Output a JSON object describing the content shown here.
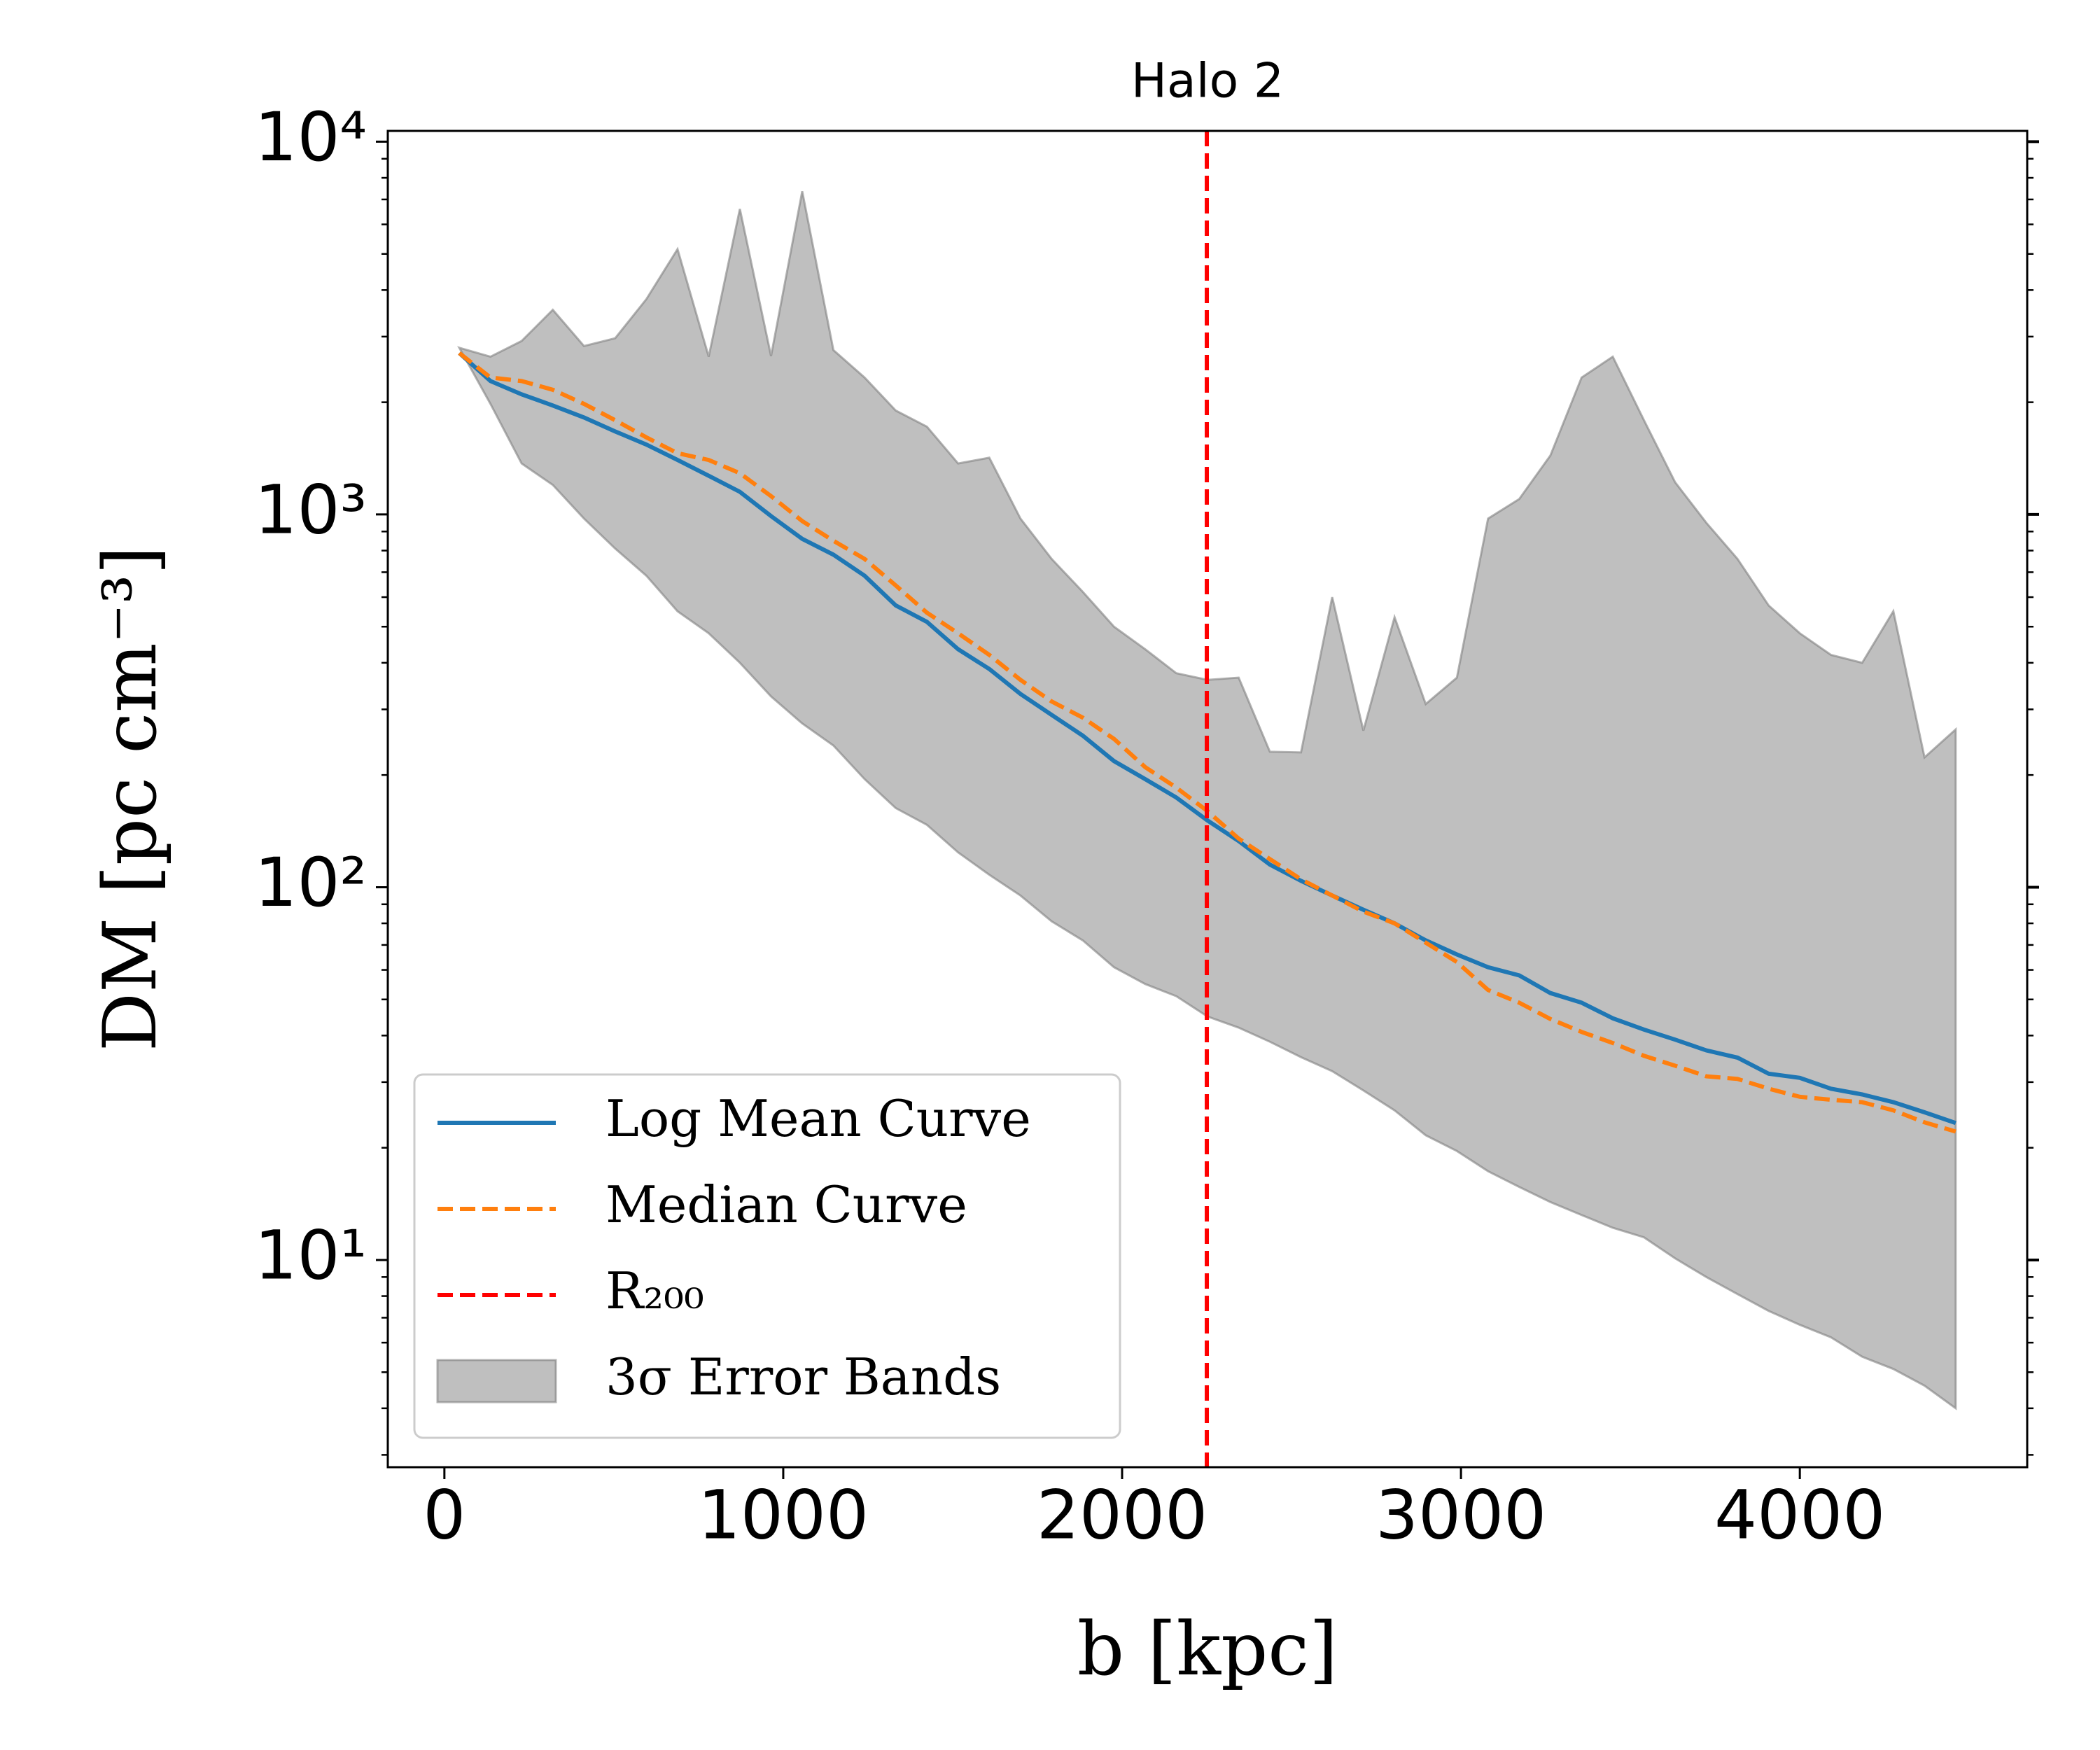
{
  "chart_data": {
    "type": "line",
    "title": "Halo 2",
    "xlabel": "b [kpc]",
    "ylabel": "DM [pc cm⁻³]",
    "x": [
      44,
      136,
      228,
      320,
      412,
      504,
      596,
      688,
      780,
      872,
      964,
      1056,
      1148,
      1240,
      1332,
      1424,
      1516,
      1608,
      1700,
      1792,
      1884,
      1976,
      2068,
      2160,
      2252,
      2344,
      2436,
      2528,
      2620,
      2712,
      2804,
      2896,
      2988,
      3080,
      3172,
      3264,
      3356,
      3448,
      3540,
      3632,
      3724,
      3816,
      3908,
      4000,
      4092,
      4184,
      4276,
      4368,
      4460
    ],
    "series": [
      {
        "name": "Log Mean Curve",
        "color": "#1f77b4",
        "dash": false,
        "values": [
          2710,
          2280,
          2100,
          1960,
          1820,
          1670,
          1540,
          1400,
          1270,
          1150,
          990,
          860,
          780,
          685,
          570,
          515,
          435,
          385,
          330,
          290,
          255,
          218,
          195,
          174,
          151,
          133,
          115,
          104,
          95,
          87,
          80,
          72,
          66,
          61,
          58,
          52,
          49,
          44.5,
          41.5,
          39,
          36.5,
          34.9,
          31.6,
          30.8,
          28.8,
          27.8,
          26.5,
          24.9,
          23.3
        ]
      },
      {
        "name": "Median Curve",
        "color": "#ff7f0e",
        "dash": true,
        "values": [
          2710,
          2330,
          2280,
          2160,
          1980,
          1790,
          1610,
          1460,
          1400,
          1290,
          1120,
          960,
          850,
          760,
          645,
          545,
          480,
          420,
          360,
          315,
          285,
          250,
          210,
          185,
          160,
          135,
          119,
          105,
          95,
          86,
          80,
          71,
          63,
          53,
          49,
          44.3,
          40.9,
          38.2,
          35.3,
          33.2,
          31.1,
          30.6,
          28.8,
          27.4,
          26.9,
          26.5,
          25.2,
          23.4,
          22.1
        ]
      }
    ],
    "vlines": [
      {
        "name": "R₂₀₀",
        "x": 2250,
        "color": "#ff0000"
      }
    ],
    "band": {
      "name": "3σ Error Bands",
      "color": "#808080",
      "upper": [
        2800,
        2650,
        2920,
        3540,
        2830,
        2970,
        3780,
        5150,
        2650,
        6600,
        2660,
        7360,
        2760,
        2330,
        1900,
        1720,
        1370,
        1420,
        975,
        760,
        620,
        500,
        435,
        375,
        360,
        365,
        231,
        230,
        600,
        263,
        530,
        310,
        365,
        975,
        1100,
        1440,
        2330,
        2650,
        1790,
        1220,
        950,
        760,
        570,
        480,
        420,
        400,
        550,
        223,
        265
      ],
      "lower": [
        2800,
        1980,
        1370,
        1200,
        975,
        810,
        685,
        550,
        480,
        400,
        325,
        275,
        240,
        195,
        163,
        147,
        124,
        108,
        95,
        81,
        72,
        61,
        55,
        51,
        45,
        42,
        38.5,
        35,
        32.1,
        28.5,
        25.2,
        21.6,
        19.6,
        17.3,
        15.7,
        14.3,
        13.2,
        12.2,
        11.5,
        10.1,
        9.0,
        8.1,
        7.3,
        6.7,
        6.2,
        5.5,
        5.1,
        4.6,
        4.0
      ]
    },
    "xlim": [
      -167,
      4671
    ],
    "xticks": [
      0,
      1000,
      2000,
      3000,
      4000
    ],
    "ylog": true,
    "ylim": [
      2.78,
      10690
    ],
    "yticks": [
      {
        "value": 10,
        "label": "10¹"
      },
      {
        "value": 100,
        "label": "10²"
      },
      {
        "value": 1000,
        "label": "10³"
      },
      {
        "value": 10000,
        "label": "10⁴"
      }
    ],
    "yminorticks": [
      3,
      4,
      5,
      6,
      7,
      8,
      9,
      20,
      30,
      40,
      50,
      60,
      70,
      80,
      90,
      200,
      300,
      400,
      500,
      600,
      700,
      800,
      900,
      2000,
      3000,
      4000,
      5000,
      6000,
      7000,
      8000,
      9000
    ],
    "legend": "lower left"
  }
}
